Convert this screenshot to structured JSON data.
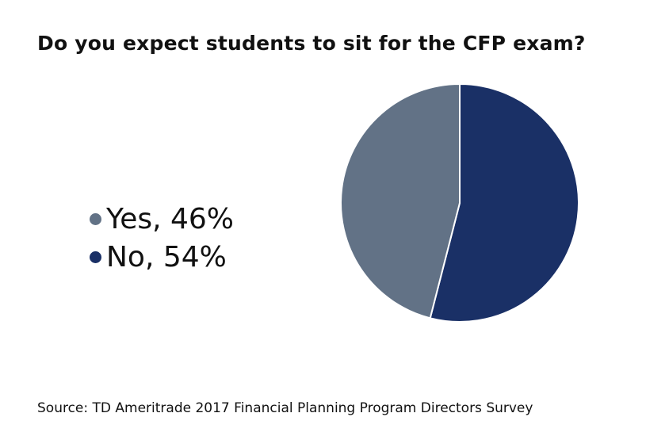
{
  "chart_data": {
    "type": "pie",
    "title": "Do you expect students to sit for the CFP exam?",
    "slices": [
      {
        "label": "No",
        "value": 54,
        "color": "#1a3066",
        "legend": "No, 54%"
      },
      {
        "label": "Yes",
        "value": 46,
        "color": "#627286",
        "legend": "Yes, 46%"
      }
    ],
    "start": "top, clockwise",
    "legend_placement": "left",
    "legend_order": [
      1,
      0
    ]
  },
  "source": "Source: TD Ameritrade 2017 Financial Planning Program Directors Survey"
}
